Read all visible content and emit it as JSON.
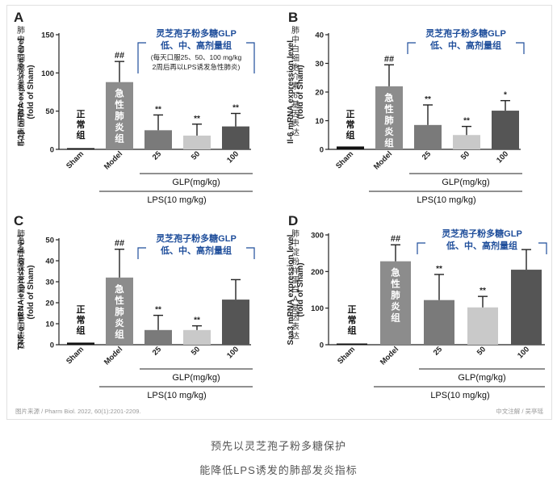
{
  "chart_data": [
    {
      "type": "bar",
      "panel_letter": "A",
      "cn_label": "肺中白细胞介素1β基因表达",
      "ylabel": "Il-1β mRNA expression level (fold of Sham)",
      "ylabel_line1": "Il-1β  mRNA expression level",
      "ylabel_line2": "(fold of Sham)",
      "ylim": [
        0,
        150
      ],
      "yticks": [
        0,
        50,
        100,
        150
      ],
      "categories": [
        "Sham",
        "Model",
        "25",
        "50",
        "100"
      ],
      "values": [
        1,
        88,
        25,
        18,
        30
      ],
      "errors": [
        0.5,
        27,
        20,
        15,
        17
      ],
      "labels": [
        "",
        "##",
        "**",
        "**",
        "**"
      ],
      "bar_colors": [
        "#111111",
        "#8c8c8c",
        "#7a7a7a",
        "#c9c9c9",
        "#555555"
      ],
      "in_bar_text": [
        "正常组",
        "急性肺炎组",
        "",
        "",
        ""
      ],
      "bracket_title_lines": [
        "灵芝孢子粉多糖GLP",
        "低、中、高剂量组"
      ],
      "bracket_note_lines": [
        "(每天口服25、50、100 mg/kg",
        "2周后再以LPS诱发急性肺炎)"
      ],
      "glp_label": "GLP(mg/kg)",
      "lps_label": "LPS(10 mg/kg)"
    },
    {
      "type": "bar",
      "panel_letter": "B",
      "cn_label": "肺中白细胞介素6基因表达",
      "ylabel": "Il-6 mRNA expression level (fold of Sham)",
      "ylabel_line1": "Il-6  mRNA expression level",
      "ylabel_line2": "(fold of Sham)",
      "ylim": [
        0,
        40
      ],
      "yticks": [
        0,
        10,
        20,
        30,
        40
      ],
      "categories": [
        "Sham",
        "Model",
        "25",
        "50",
        "100"
      ],
      "values": [
        1,
        22,
        8.5,
        5,
        13.5
      ],
      "errors": [
        0.3,
        7.5,
        7,
        3,
        3.5
      ],
      "labels": [
        "",
        "##",
        "**",
        "**",
        "*"
      ],
      "bar_colors": [
        "#111111",
        "#8c8c8c",
        "#7a7a7a",
        "#c9c9c9",
        "#555555"
      ],
      "in_bar_text": [
        "正常组",
        "急性肺炎组",
        "",
        "",
        ""
      ],
      "bracket_title_lines": [
        "灵芝孢子粉多糖GLP",
        "低、中、高剂量组"
      ],
      "bracket_note_lines": [],
      "glp_label": "GLP(mg/kg)",
      "lps_label": "LPS(10 mg/kg)"
    },
    {
      "type": "bar",
      "panel_letter": "C",
      "cn_label": "肺中肿瘤坏死因子α基因表达",
      "ylabel": "TNF-α mRNA expression level (fold of Sham)",
      "ylabel_line1": "TNF-α mRNA expression level",
      "ylabel_line2": "(fold of Sham)",
      "ylim": [
        0,
        50
      ],
      "yticks": [
        0,
        10,
        20,
        30,
        40,
        50
      ],
      "categories": [
        "Sham",
        "Model",
        "25",
        "50",
        "100"
      ],
      "values": [
        1,
        32,
        7,
        7,
        21.5
      ],
      "errors": [
        0.3,
        13.5,
        7,
        2,
        9.5
      ],
      "labels": [
        "",
        "##",
        "**",
        "**",
        ""
      ],
      "bar_colors": [
        "#111111",
        "#8c8c8c",
        "#7a7a7a",
        "#c9c9c9",
        "#555555"
      ],
      "in_bar_text": [
        "正常组",
        "急性肺炎组",
        "",
        "",
        ""
      ],
      "bracket_title_lines": [
        "灵芝孢子粉多糖GLP",
        "低、中、高剂量组"
      ],
      "bracket_note_lines": [],
      "glp_label": "GLP(mg/kg)",
      "lps_label": "LPS(10 mg/kg)"
    },
    {
      "type": "bar",
      "panel_letter": "D",
      "cn_label": "肺中淀粉样蛋白A基因表达",
      "ylabel": "Saa3 mRNA expression level (fold of Sham)",
      "ylabel_line1": "Saa3 mRNA expression level",
      "ylabel_line2": "(fold of Sham)",
      "ylim": [
        0,
        300
      ],
      "yticks": [
        0,
        100,
        200,
        300
      ],
      "categories": [
        "Sham",
        "Model",
        "25",
        "50",
        "100"
      ],
      "values": [
        1,
        228,
        122,
        102,
        205
      ],
      "errors": [
        0.5,
        45,
        70,
        30,
        55
      ],
      "labels": [
        "",
        "##",
        "**",
        "**",
        ""
      ],
      "bar_colors": [
        "#111111",
        "#8c8c8c",
        "#7a7a7a",
        "#c9c9c9",
        "#555555"
      ],
      "in_bar_text": [
        "正常组",
        "急性肺炎组",
        "",
        "",
        ""
      ],
      "bracket_title_lines": [
        "灵芝孢子粉多糖GLP",
        "低、中、高剂量组"
      ],
      "bracket_note_lines": [],
      "glp_label": "GLP(mg/kg)",
      "lps_label": "LPS(10 mg/kg)"
    }
  ],
  "source_note": "图片来源 / Pharm Biol. 2022, 60(1):2201-2209.",
  "credit_note": "中文注解 / 吴亭瑶",
  "caption_line1": "预先以灵芝孢子粉多糖保护",
  "caption_line2": "能降低LPS诱发的肺部发炎指标",
  "colors": {
    "annotation_blue": "#1f4e9b",
    "axis": "#222222"
  }
}
